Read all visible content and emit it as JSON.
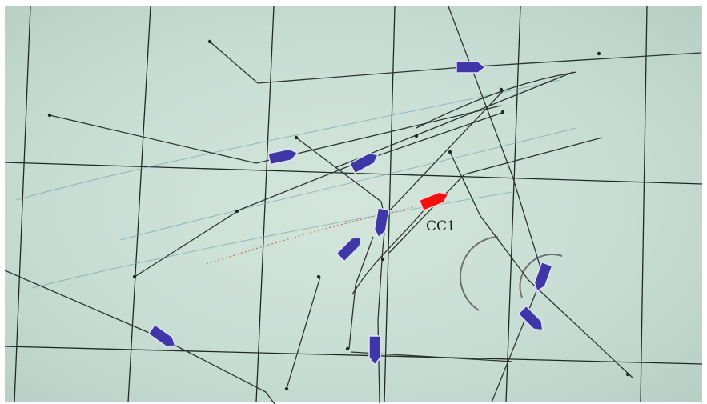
{
  "colors": {
    "screen_background": "#c9ddd4",
    "grid_line": "#1c2a26",
    "track_line": "#2b3532",
    "radar_arc": "#6b726f",
    "faint_trail": "#7aa6b0",
    "history_trail": "#c47a6a",
    "contact_fill": "#3f37a8",
    "contact_outline": "#dfe4f4",
    "selected_fill": "#f01010"
  },
  "contacts": [
    {
      "icon": "ship-icon",
      "state": "tracked"
    },
    {
      "icon": "ship-icon",
      "state": "tracked"
    },
    {
      "icon": "ship-icon",
      "state": "tracked"
    },
    {
      "icon": "ship-icon",
      "state": "tracked"
    },
    {
      "icon": "ship-icon",
      "state": "tracked"
    },
    {
      "icon": "ship-icon",
      "state": "tracked"
    },
    {
      "icon": "ship-icon",
      "state": "tracked"
    },
    {
      "icon": "ship-icon",
      "state": "tracked"
    },
    {
      "icon": "ship-icon",
      "state": "tracked"
    }
  ],
  "selected_contact": {
    "label": "CC1",
    "icon": "ship-icon",
    "state": "selected"
  }
}
